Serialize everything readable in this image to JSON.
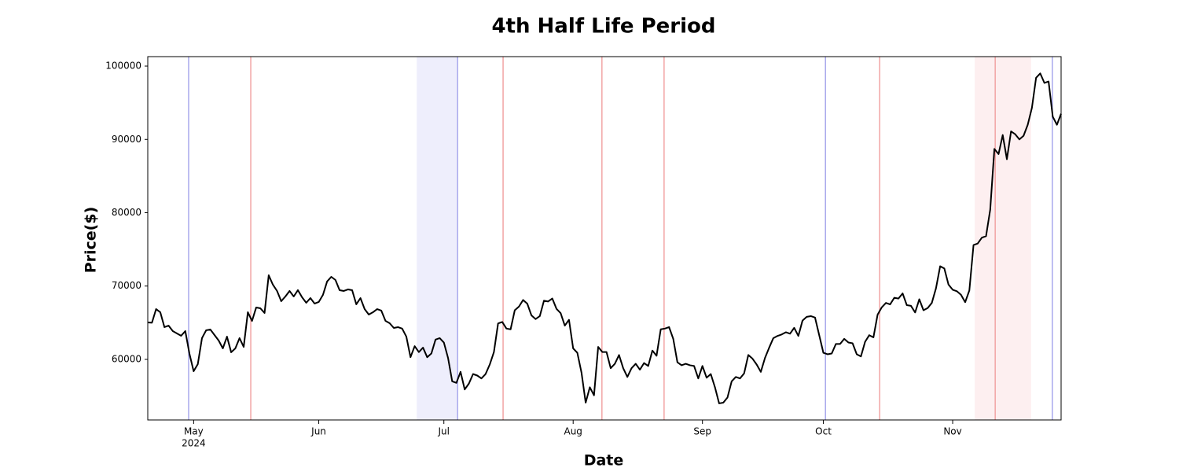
{
  "chart_data": {
    "type": "line",
    "title": "4th Half Life Period",
    "xlabel": "Date",
    "ylabel": "Price($)",
    "xlim": [
      0,
      219
    ],
    "xticks": [
      {
        "value": 11,
        "label": "May",
        "sublabel": "2024"
      },
      {
        "value": 41,
        "label": "Jun"
      },
      {
        "value": 71,
        "label": "Jul"
      },
      {
        "value": 102,
        "label": "Aug"
      },
      {
        "value": 133,
        "label": "Sep"
      },
      {
        "value": 162,
        "label": "Oct"
      },
      {
        "value": 193,
        "label": "Nov"
      }
    ],
    "ylim": [
      51740,
      101290
    ],
    "yticks": [
      60000,
      70000,
      80000,
      90000,
      100000
    ],
    "spans": [
      {
        "x0": 64.5,
        "x1": 74.3,
        "color": "#eeeefc"
      },
      {
        "x0": 198.3,
        "x1": 211.8,
        "color": "#fdeff0"
      }
    ],
    "vlines": [
      {
        "x": 9.8,
        "color": "#a8a8ec"
      },
      {
        "x": 24.7,
        "color": "#f2a4a4"
      },
      {
        "x": 74.3,
        "color": "#a8a8ec"
      },
      {
        "x": 85.2,
        "color": "#f2a4a4"
      },
      {
        "x": 108.9,
        "color": "#f2a4a4"
      },
      {
        "x": 123.8,
        "color": "#f2a4a4"
      },
      {
        "x": 162.5,
        "color": "#a8a8ec"
      },
      {
        "x": 175.5,
        "color": "#f2a4a4"
      },
      {
        "x": 203.2,
        "color": "#f2a4a4"
      },
      {
        "x": 216.9,
        "color": "#a8a8ec"
      }
    ],
    "series": [
      {
        "color": "#000000",
        "values": [
          65040,
          65000,
          66860,
          66430,
          64400,
          64600,
          63860,
          63540,
          63220,
          63860,
          60750,
          58390,
          59360,
          62900,
          63970,
          64080,
          63320,
          62570,
          61500,
          63100,
          60970,
          61500,
          62900,
          61700,
          66430,
          65250,
          67080,
          66970,
          66330,
          71470,
          70190,
          69330,
          67940,
          68580,
          69330,
          68580,
          69440,
          68470,
          67720,
          68360,
          67610,
          67830,
          68790,
          70620,
          71260,
          70830,
          69440,
          69330,
          69540,
          69440,
          67510,
          68360,
          66860,
          66110,
          66430,
          66860,
          66650,
          65250,
          64930,
          64290,
          64400,
          64200,
          63100,
          60300,
          61800,
          61000,
          61600,
          60300,
          60800,
          62700,
          62900,
          62300,
          60200,
          57000,
          56800,
          58300,
          55900,
          56700,
          58000,
          57800,
          57400,
          58000,
          59300,
          61000,
          64900,
          65100,
          64200,
          64100,
          66700,
          67200,
          68100,
          67600,
          66000,
          65500,
          65900,
          68000,
          67900,
          68300,
          66900,
          66300,
          64600,
          65400,
          61500,
          60900,
          58200,
          54100,
          56200,
          55100,
          61700,
          61000,
          61000,
          58800,
          59400,
          60600,
          58800,
          57600,
          58800,
          59400,
          58600,
          59500,
          59100,
          61200,
          60500,
          64100,
          64200,
          64400,
          62800,
          59600,
          59200,
          59400,
          59200,
          59100,
          57400,
          59100,
          57500,
          58000,
          56200,
          54000,
          54100,
          54800,
          57000,
          57600,
          57400,
          58100,
          60600,
          60100,
          59300,
          58300,
          60200,
          61600,
          62900,
          63200,
          63400,
          63700,
          63500,
          64300,
          63200,
          65300,
          65800,
          65900,
          65700,
          63300,
          60900,
          60700,
          60800,
          62100,
          62100,
          62800,
          62300,
          62200,
          60700,
          60400,
          62400,
          63300,
          63000,
          66100,
          67100,
          67700,
          67500,
          68400,
          68300,
          69000,
          67400,
          67300,
          66400,
          68200,
          66700,
          67000,
          67700,
          69700,
          72700,
          72400,
          70200,
          69500,
          69300,
          68800,
          67800,
          69400,
          75600,
          75800,
          76600,
          76800,
          80400,
          88700,
          88000,
          90600,
          87300,
          91100,
          90700,
          90000,
          90500,
          92000,
          94300,
          98400,
          99000,
          97700,
          97900,
          93100,
          92000,
          93500
        ]
      }
    ]
  }
}
